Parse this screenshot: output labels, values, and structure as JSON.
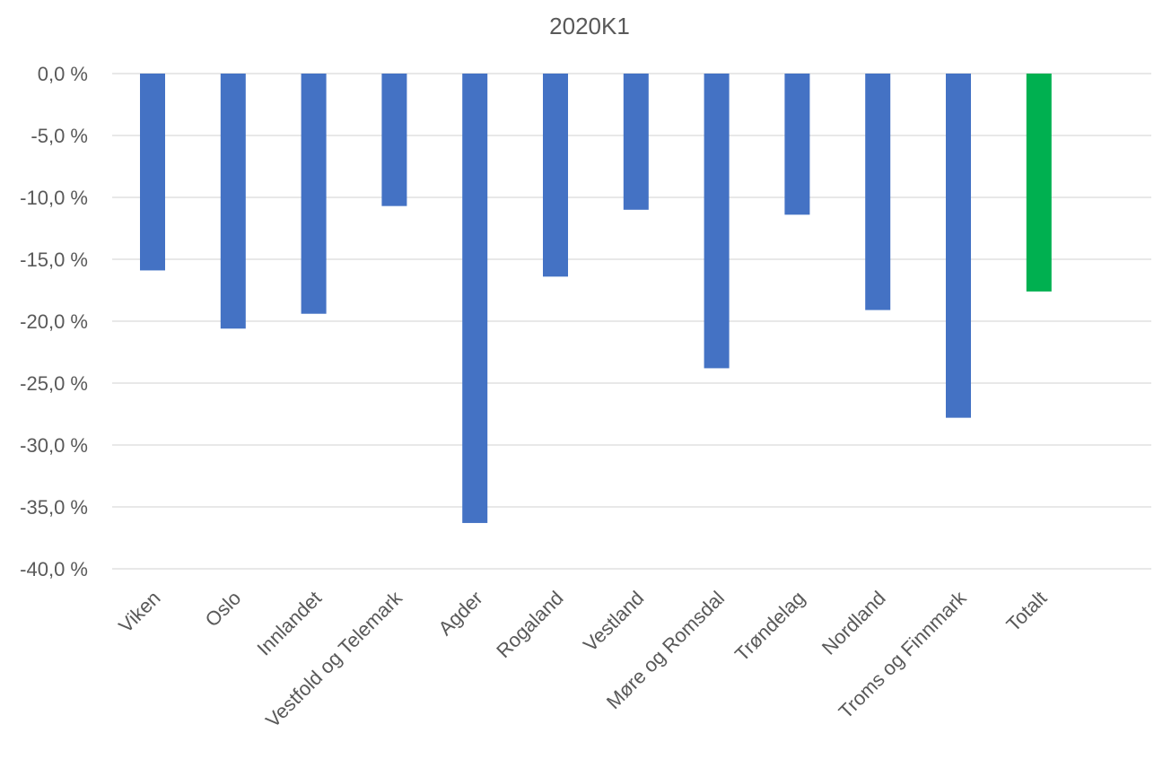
{
  "chart_data": {
    "type": "bar",
    "title": "2020K1",
    "xlabel": "",
    "ylabel": "",
    "categories": [
      "Viken",
      "Oslo",
      "Innlandet",
      "Vestfold og Telemark",
      "Agder",
      "Rogaland",
      "Vestland",
      "Møre og Romsdal",
      "Trøndelag",
      "Nordland",
      "Troms og Finnmark",
      "Totalt"
    ],
    "values": [
      -15.9,
      -20.6,
      -19.4,
      -10.7,
      -36.3,
      -16.4,
      -11.0,
      -23.8,
      -11.4,
      -19.1,
      -27.8,
      -17.6
    ],
    "ylim": [
      -40,
      0
    ],
    "yticks": [
      0,
      -5,
      -10,
      -15,
      -20,
      -25,
      -30,
      -35,
      -40
    ],
    "ytick_labels": [
      "0,0 %",
      "-5,0 %",
      "-10,0 %",
      "-15,0 %",
      "-20,0 %",
      "-25,0 %",
      "-30,0 %",
      "-35,0 %",
      "-40,0 %"
    ],
    "grid": true,
    "legend": "none",
    "colors": {
      "bar": "#4472c4",
      "total_bar": "#00b050"
    }
  }
}
